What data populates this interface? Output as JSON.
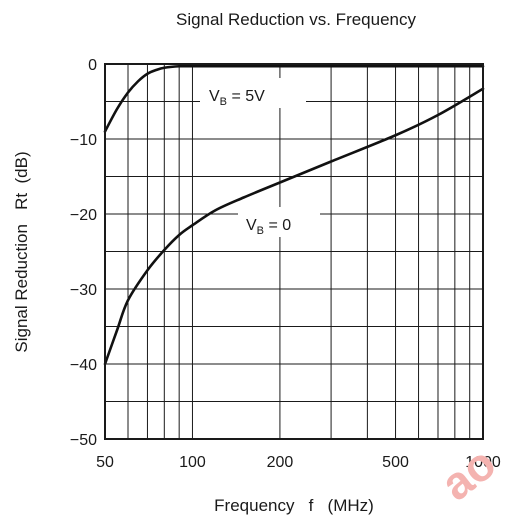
{
  "chart_data": {
    "type": "line",
    "title": "Signal Reduction vs. Frequency",
    "xlabel": "Frequency   f   (MHz)",
    "ylabel": "Signal Reduction   Rt  (dB)",
    "xscale": "log",
    "xlim": [
      50,
      1000
    ],
    "ylim": [
      -50,
      0
    ],
    "x_ticks": [
      50,
      100,
      200,
      500,
      1000
    ],
    "x_tick_labels": [
      "50",
      "100",
      "200",
      "500",
      "1000"
    ],
    "y_ticks": [
      0,
      -10,
      -20,
      -30,
      -40,
      -50
    ],
    "y_tick_labels": [
      "0",
      "−10",
      "−20",
      "−30",
      "−40",
      "−50"
    ],
    "grid": true,
    "series": [
      {
        "name": "VB = 5V",
        "label_main": "V",
        "label_sub": "B",
        "label_tail": " = 5V",
        "x": [
          50,
          55,
          60,
          65,
          70,
          75,
          80,
          90,
          100,
          200,
          500,
          1000
        ],
        "y": [
          -9.0,
          -6.0,
          -3.8,
          -2.3,
          -1.3,
          -0.8,
          -0.5,
          -0.3,
          -0.3,
          -0.3,
          -0.3,
          -0.3
        ]
      },
      {
        "name": "VB = 0",
        "label_main": "V",
        "label_sub": "B",
        "label_tail": " = 0",
        "x": [
          50,
          55,
          60,
          70,
          80,
          90,
          100,
          120,
          150,
          200,
          300,
          500,
          700,
          1000
        ],
        "y": [
          -40.0,
          -35.5,
          -31.5,
          -27.5,
          -24.8,
          -22.8,
          -21.5,
          -19.5,
          -17.8,
          -15.8,
          -13.0,
          -9.5,
          -6.8,
          -3.3
        ]
      }
    ]
  },
  "watermark": "ao"
}
